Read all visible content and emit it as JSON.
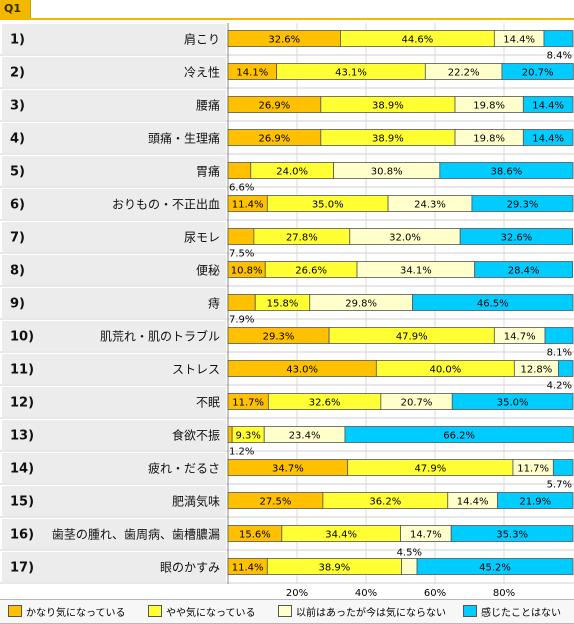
{
  "tab_label": "Q1",
  "colors": {
    "s1": "#ffc000",
    "s2": "#ffff33",
    "s3": "#ffffcc",
    "s4": "#00ccff",
    "rowLabelBg": "#ececec",
    "tab": "#f2b800"
  },
  "legend": [
    {
      "label": "かなり気になっている"
    },
    {
      "label": "やや気になっている"
    },
    {
      "label": "以前はあったが今は気にならない"
    },
    {
      "label": "感じたことはない"
    }
  ],
  "chart_data": {
    "type": "bar",
    "orientation": "horizontal",
    "stacked": true,
    "xlim": [
      0,
      100
    ],
    "x_ticks": [
      "20%",
      "40%",
      "60%",
      "80%"
    ],
    "categories": [
      "肩こり",
      "冷え性",
      "腰痛",
      "頭痛・生理痛",
      "胃痛",
      "おりもの・不正出血",
      "尿モレ",
      "便秘",
      "痔",
      "肌荒れ・肌のトラブル",
      "ストレス",
      "不眠",
      "食欲不振",
      "疲れ・だるさ",
      "肥満気味",
      "歯茎の腫れ、歯周病、歯槽膿漏",
      "眼のかすみ"
    ],
    "row_numbers": [
      "1)",
      "2)",
      "3)",
      "4)",
      "5)",
      "6)",
      "7)",
      "8)",
      "9)",
      "10)",
      "11)",
      "12)",
      "13)",
      "14)",
      "15)",
      "16)",
      "17)"
    ],
    "series": [
      {
        "name": "かなり気になっている",
        "values": [
          32.6,
          14.1,
          26.9,
          26.9,
          6.6,
          11.4,
          7.5,
          10.8,
          7.9,
          29.3,
          43.0,
          11.7,
          1.2,
          34.7,
          27.5,
          15.6,
          11.4
        ],
        "labels": [
          "32.6%",
          "14.1%",
          "26.9%",
          "26.9%",
          "6.6%",
          "11.4%",
          "7.5%",
          "10.8%",
          "7.9%",
          "29.3%",
          "43.0%",
          "11.7%",
          "1.2%",
          "34.7%",
          "27.5%",
          "15.6%",
          "11.4%"
        ]
      },
      {
        "name": "やや気になっている",
        "values": [
          44.6,
          43.1,
          38.9,
          38.9,
          24.0,
          35.0,
          27.8,
          26.6,
          15.8,
          47.9,
          40.0,
          32.6,
          9.3,
          47.9,
          36.2,
          34.4,
          38.9
        ],
        "labels": [
          "44.6%",
          "43.1%",
          "38.9%",
          "38.9%",
          "24.0%",
          "35.0%",
          "27.8%",
          "26.6%",
          "15.8%",
          "47.9%",
          "40.0%",
          "32.6%",
          "9.3%",
          "47.9%",
          "36.2%",
          "34.4%",
          "38.9%"
        ]
      },
      {
        "name": "以前はあったが今は気にならない",
        "values": [
          14.4,
          22.2,
          19.8,
          19.8,
          30.8,
          24.3,
          32.0,
          34.1,
          29.8,
          14.7,
          12.8,
          20.7,
          23.4,
          11.7,
          14.4,
          14.7,
          4.5
        ],
        "labels": [
          "14.4%",
          "22.2%",
          "19.8%",
          "19.8%",
          "30.8%",
          "24.3%",
          "32.0%",
          "34.1%",
          "29.8%",
          "14.7%",
          "12.8%",
          "20.7%",
          "23.4%",
          "11.7%",
          "14.4%",
          "14.7%",
          "4.5%"
        ]
      },
      {
        "name": "感じたことはない",
        "values": [
          8.4,
          20.7,
          14.4,
          14.4,
          38.6,
          29.3,
          32.6,
          28.4,
          46.5,
          8.1,
          4.2,
          35.0,
          66.2,
          5.7,
          21.9,
          35.3,
          45.2
        ],
        "labels": [
          "8.4%",
          "20.7%",
          "14.4%",
          "14.4%",
          "38.6%",
          "29.3%",
          "32.6%",
          "28.4%",
          "46.5%",
          "8.1%",
          "4.2%",
          "35.0%",
          "66.2%",
          "5.7%",
          "21.9%",
          "35.3%",
          "45.2%"
        ]
      }
    ]
  }
}
